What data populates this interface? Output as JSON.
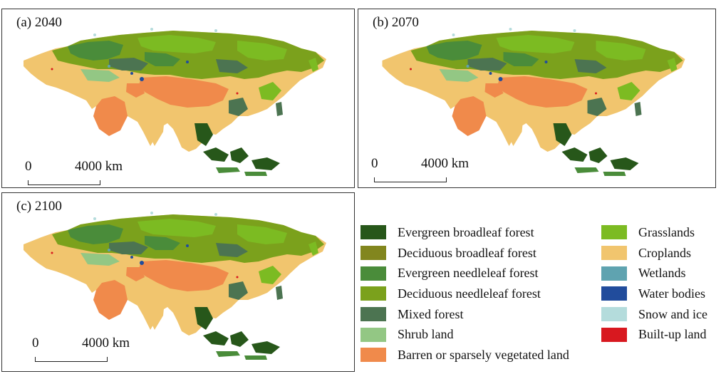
{
  "panels": [
    {
      "label": "(a) 2040",
      "scale_zero": "0",
      "scale_distance": "4000 km"
    },
    {
      "label": "(b) 2070",
      "scale_zero": "0",
      "scale_distance": "4000 km"
    },
    {
      "label": "(c) 2100",
      "scale_zero": "0",
      "scale_distance": "4000 km"
    }
  ],
  "legend": {
    "left": [
      {
        "label": "Evergreen broadleaf forest",
        "color": "#27571a"
      },
      {
        "label": "Deciduous broadleaf forest",
        "color": "#82861e"
      },
      {
        "label": "Evergreen needleleaf forest",
        "color": "#4a8c3a"
      },
      {
        "label": "Deciduous needleleaf forest",
        "color": "#7ba11c"
      },
      {
        "label": "Mixed forest",
        "color": "#4c7451"
      },
      {
        "label": "Shrub land",
        "color": "#93c784"
      },
      {
        "label": "Barren or sparsely vegetated land",
        "color": "#f08a4b"
      }
    ],
    "right": [
      {
        "label": "Grasslands",
        "color": "#7cbb22"
      },
      {
        "label": "Croplands",
        "color": "#f1c56e"
      },
      {
        "label": "Wetlands",
        "color": "#5fa3b0"
      },
      {
        "label": "Water bodies",
        "color": "#214c9c"
      },
      {
        "label": "Snow and ice",
        "color": "#b4dcdc"
      },
      {
        "label": "Built-up land",
        "color": "#d8181f"
      }
    ]
  }
}
